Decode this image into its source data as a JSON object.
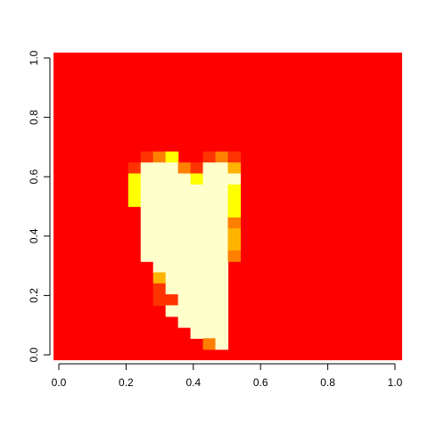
{
  "chart_data": {
    "type": "heatmap",
    "title": "",
    "xlabel": "",
    "ylabel": "",
    "xlim": [
      0,
      1
    ],
    "ylim": [
      0,
      1
    ],
    "x_ticks": [
      0.0,
      0.2,
      0.4,
      0.6,
      0.8,
      1.0
    ],
    "y_ticks": [
      0.0,
      0.2,
      0.4,
      0.6,
      0.8,
      1.0
    ],
    "x_tick_labels": [
      "0.0",
      "0.2",
      "0.4",
      "0.6",
      "0.8",
      "1.0"
    ],
    "y_tick_labels": [
      "0.0",
      "0.2",
      "0.4",
      "0.6",
      "0.8",
      "1.0"
    ],
    "grid_rows": 28,
    "grid_cols": 28,
    "palette": [
      "#FF0000",
      "#FF3300",
      "#FF8000",
      "#FFB300",
      "#FFFF00",
      "#FFFFCC"
    ],
    "background_level": 0,
    "cells": [
      [
        9,
        7,
        1
      ],
      [
        9,
        8,
        2
      ],
      [
        9,
        9,
        4
      ],
      [
        9,
        12,
        1
      ],
      [
        9,
        13,
        2
      ],
      [
        9,
        14,
        1
      ],
      [
        10,
        6,
        1
      ],
      [
        10,
        7,
        5
      ],
      [
        10,
        8,
        5
      ],
      [
        10,
        9,
        5
      ],
      [
        10,
        10,
        2
      ],
      [
        10,
        11,
        1
      ],
      [
        10,
        12,
        5
      ],
      [
        10,
        13,
        5
      ],
      [
        10,
        14,
        3
      ],
      [
        11,
        6,
        4
      ],
      [
        11,
        7,
        5
      ],
      [
        11,
        8,
        5
      ],
      [
        11,
        9,
        5
      ],
      [
        11,
        10,
        5
      ],
      [
        11,
        11,
        4
      ],
      [
        11,
        12,
        5
      ],
      [
        11,
        13,
        5
      ],
      [
        11,
        14,
        5
      ],
      [
        12,
        6,
        4
      ],
      [
        12,
        7,
        5
      ],
      [
        12,
        8,
        5
      ],
      [
        12,
        9,
        5
      ],
      [
        12,
        10,
        5
      ],
      [
        12,
        11,
        5
      ],
      [
        12,
        12,
        5
      ],
      [
        12,
        13,
        5
      ],
      [
        12,
        14,
        4
      ],
      [
        13,
        6,
        4
      ],
      [
        13,
        7,
        5
      ],
      [
        13,
        8,
        5
      ],
      [
        13,
        9,
        5
      ],
      [
        13,
        10,
        5
      ],
      [
        13,
        11,
        5
      ],
      [
        13,
        12,
        5
      ],
      [
        13,
        13,
        5
      ],
      [
        13,
        14,
        4
      ],
      [
        14,
        7,
        5
      ],
      [
        14,
        8,
        5
      ],
      [
        14,
        9,
        5
      ],
      [
        14,
        10,
        5
      ],
      [
        14,
        11,
        5
      ],
      [
        14,
        12,
        5
      ],
      [
        14,
        13,
        5
      ],
      [
        14,
        14,
        4
      ],
      [
        15,
        7,
        5
      ],
      [
        15,
        8,
        5
      ],
      [
        15,
        9,
        5
      ],
      [
        15,
        10,
        5
      ],
      [
        15,
        11,
        5
      ],
      [
        15,
        12,
        5
      ],
      [
        15,
        13,
        5
      ],
      [
        15,
        14,
        2
      ],
      [
        16,
        7,
        5
      ],
      [
        16,
        8,
        5
      ],
      [
        16,
        9,
        5
      ],
      [
        16,
        10,
        5
      ],
      [
        16,
        11,
        5
      ],
      [
        16,
        12,
        5
      ],
      [
        16,
        13,
        5
      ],
      [
        16,
        14,
        3
      ],
      [
        17,
        7,
        5
      ],
      [
        17,
        8,
        5
      ],
      [
        17,
        9,
        5
      ],
      [
        17,
        10,
        5
      ],
      [
        17,
        11,
        5
      ],
      [
        17,
        12,
        5
      ],
      [
        17,
        13,
        5
      ],
      [
        17,
        14,
        3
      ],
      [
        18,
        7,
        5
      ],
      [
        18,
        8,
        5
      ],
      [
        18,
        9,
        5
      ],
      [
        18,
        10,
        5
      ],
      [
        18,
        11,
        5
      ],
      [
        18,
        12,
        5
      ],
      [
        18,
        13,
        5
      ],
      [
        18,
        14,
        2
      ],
      [
        19,
        8,
        5
      ],
      [
        19,
        9,
        5
      ],
      [
        19,
        10,
        5
      ],
      [
        19,
        11,
        5
      ],
      [
        19,
        12,
        5
      ],
      [
        19,
        13,
        5
      ],
      [
        20,
        8,
        3
      ],
      [
        20,
        9,
        5
      ],
      [
        20,
        10,
        5
      ],
      [
        20,
        11,
        5
      ],
      [
        20,
        12,
        5
      ],
      [
        20,
        13,
        5
      ],
      [
        21,
        8,
        1
      ],
      [
        21,
        9,
        5
      ],
      [
        21,
        10,
        5
      ],
      [
        21,
        11,
        5
      ],
      [
        21,
        12,
        5
      ],
      [
        21,
        13,
        5
      ],
      [
        22,
        8,
        1
      ],
      [
        22,
        9,
        1
      ],
      [
        22,
        10,
        5
      ],
      [
        22,
        11,
        5
      ],
      [
        22,
        12,
        5
      ],
      [
        22,
        13,
        5
      ],
      [
        23,
        9,
        5
      ],
      [
        23,
        10,
        5
      ],
      [
        23,
        11,
        5
      ],
      [
        23,
        12,
        5
      ],
      [
        23,
        13,
        5
      ],
      [
        24,
        10,
        5
      ],
      [
        24,
        11,
        5
      ],
      [
        24,
        12,
        5
      ],
      [
        24,
        13,
        5
      ],
      [
        25,
        11,
        5
      ],
      [
        25,
        12,
        5
      ],
      [
        25,
        13,
        5
      ],
      [
        26,
        12,
        2
      ],
      [
        26,
        13,
        5
      ]
    ]
  }
}
